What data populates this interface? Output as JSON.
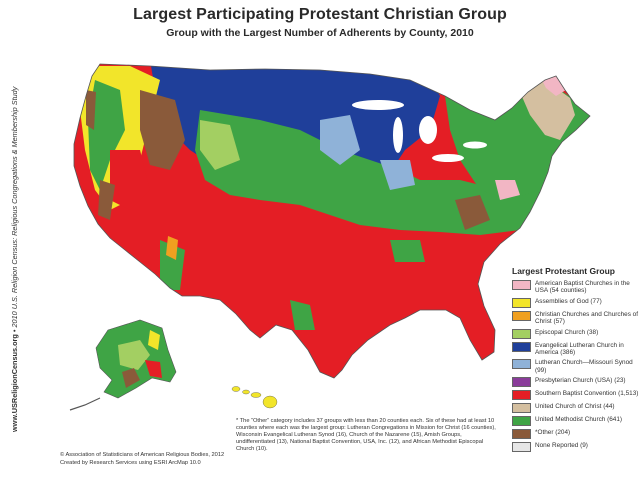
{
  "header": {
    "title": "Largest Participating Protestant Christian Group",
    "subtitle": "Group with the Largest Number of Adherents by County, 2010"
  },
  "side_text": {
    "website": "www.USReligionCensus.org",
    "citation": "• 2010 U.S. Religion Census: Religious Congregations & Membership Study"
  },
  "legend": {
    "title": "Largest Protestant Group",
    "items": [
      {
        "label": "American Baptist Churches in the USA (54 counties)",
        "color": "#f2b6c4"
      },
      {
        "label": "Assemblies of God (77)",
        "color": "#f2e52a"
      },
      {
        "label": "Christian Churches and Churches of Christ (57)",
        "color": "#f0a020"
      },
      {
        "label": "Episcopal Church (38)",
        "color": "#a3cf62"
      },
      {
        "label": "Evangelical Lutheran Church in America (386)",
        "color": "#1f3f9a"
      },
      {
        "label": "Lutheran Church—Missouri Synod (99)",
        "color": "#8fb2d8"
      },
      {
        "label": "Presbyterian Church (USA) (23)",
        "color": "#8a3c9a"
      },
      {
        "label": "Southern Baptist Convention (1,513)",
        "color": "#e41e25"
      },
      {
        "label": "United Church of Christ (44)",
        "color": "#d4bfa0"
      },
      {
        "label": "United Methodist Church (641)",
        "color": "#3fa445"
      },
      {
        "label": "*Other (204)",
        "color": "#8a5a3a"
      },
      {
        "label": "None Reported (9)",
        "color": "#e6e6e6"
      }
    ]
  },
  "footnote": "* The “Other” category includes 37 groups with less than 20 counties each. Six of these had at least 10 counties where each was the largest group: Lutheran Congregations in Mission for Christ (16 counties), Wisconsin Evangelical Lutheran Synod (16), Church of the Nazarene (15), Amish Groups, undifferentiated (13), National Baptist Convention, USA, Inc. (12), and African Methodist Episcopal Church (10).",
  "credits": {
    "copyright": "© Association of Statisticians of American Religious Bodies, 2012",
    "created_by": "Created by Research Services using ESRI ArcMap 10.0"
  }
}
